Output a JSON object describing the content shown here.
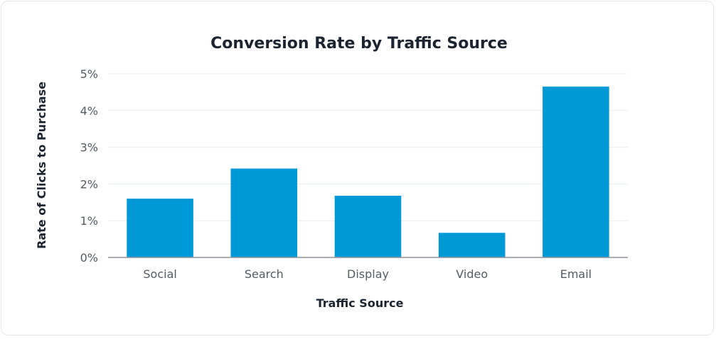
{
  "chart_data": {
    "type": "bar",
    "title": "Conversion Rate by Traffic Source",
    "xlabel": "Traffic Source",
    "ylabel": "Rate of Clicks to Purchase",
    "categories": [
      "Social",
      "Search",
      "Display",
      "Video",
      "Email"
    ],
    "values": [
      1.6,
      2.42,
      1.68,
      0.67,
      4.65
    ],
    "unit": "%",
    "ylim": [
      0,
      5
    ],
    "yticks": [
      "0%",
      "1%",
      "2%",
      "3%",
      "4%",
      "5%"
    ],
    "grid": true,
    "legend": "none",
    "colors": {
      "bar": "#0099d8"
    }
  }
}
